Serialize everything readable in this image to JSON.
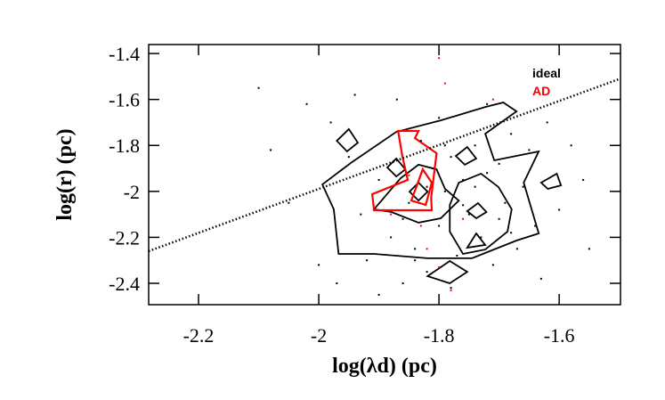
{
  "chart_data": {
    "type": "scatter",
    "x_label": "log(λd) (pc)",
    "y_label": "log(r) (pc)",
    "xlim": [
      -2.283,
      -1.498
    ],
    "ylim": [
      -2.493,
      -1.361
    ],
    "xticks": [
      -2.2,
      -2.0,
      -1.8,
      -1.6
    ],
    "yticks": [
      -2.4,
      -2.2,
      -2.0,
      -1.8,
      -1.6,
      -1.4
    ],
    "series": [
      {
        "name": "ideal",
        "color": "#000000",
        "mode": "dotted-line",
        "x": [
          -2.283,
          -1.498
        ],
        "y": [
          -2.26,
          -1.509
        ]
      },
      {
        "color": "#000000",
        "mode": "markers",
        "x": [
          -2.1,
          -2.02,
          -1.98,
          -1.95,
          -1.93,
          -1.92,
          -1.9,
          -1.88,
          -1.87,
          -1.86,
          -1.85,
          -1.84,
          -1.83,
          -1.82,
          -1.81,
          -1.8,
          -1.79,
          -1.78,
          -1.77,
          -1.76,
          -1.75,
          -1.74,
          -1.73,
          -1.72,
          -1.71,
          -1.7,
          -1.69,
          -1.68,
          -1.67,
          -1.66,
          -1.65,
          -1.64,
          -1.62,
          -1.6,
          -1.58,
          -1.56,
          -1.55,
          -1.9,
          -1.97,
          -2.05,
          -2.0,
          -1.78,
          -1.72,
          -1.8,
          -1.94,
          -2.08,
          -1.63,
          -1.86,
          -1.82,
          -1.76,
          -1.7,
          -1.84,
          -1.79,
          -1.74,
          -1.68
        ],
        "y": [
          -1.55,
          -1.62,
          -1.7,
          -1.85,
          -2.1,
          -2.3,
          -1.95,
          -2.2,
          -1.6,
          -2.4,
          -2.05,
          -2.25,
          -1.78,
          -2.35,
          -1.9,
          -2.15,
          -2.0,
          -1.85,
          -2.28,
          -1.95,
          -2.1,
          -1.8,
          -2.2,
          -1.92,
          -2.32,
          -1.88,
          -2.05,
          -1.75,
          -2.25,
          -1.98,
          -1.82,
          -2.15,
          -1.7,
          -2.08,
          -1.8,
          -1.95,
          -2.25,
          -2.45,
          -2.4,
          -2.05,
          -2.32,
          -2.42,
          -1.62,
          -1.68,
          -1.58,
          -1.82,
          -2.38,
          -2.12,
          -1.98,
          -2.06,
          -2.12,
          -2.3,
          -1.8,
          -1.98,
          -2.18
        ]
      },
      {
        "name": "AD",
        "color": "#ff0000",
        "mode": "markers",
        "x": [
          -1.8,
          -1.79,
          -1.71,
          -1.88,
          -1.82,
          -1.8,
          -1.78,
          -1.85,
          -1.76,
          -1.83
        ],
        "y": [
          -1.42,
          -1.53,
          -1.6,
          -2.1,
          -2.25,
          -2.33,
          -2.43,
          -1.93,
          -2.12,
          -2.15
        ]
      }
    ],
    "contours": [
      {
        "color": "#000000",
        "x": [
          -1.994,
          -1.945,
          -1.871,
          -1.797,
          -1.723,
          -1.693,
          -1.671,
          -1.723,
          -1.708,
          -1.634,
          -1.659,
          -1.634,
          -1.671,
          -1.745,
          -1.819,
          -1.908,
          -1.967,
          -1.975
        ],
        "y": [
          -1.97,
          -1.873,
          -1.741,
          -1.691,
          -1.633,
          -1.613,
          -1.652,
          -1.749,
          -1.865,
          -1.826,
          -1.962,
          -2.183,
          -2.214,
          -2.291,
          -2.291,
          -2.272,
          -2.272,
          -2.078
        ]
      },
      {
        "color": "#000000",
        "x": [
          -1.97,
          -1.95,
          -1.935,
          -1.953
        ],
        "y": [
          -1.78,
          -1.729,
          -1.788,
          -1.826
        ]
      },
      {
        "color": "#000000",
        "x": [
          -1.886,
          -1.871,
          -1.856,
          -1.871
        ],
        "y": [
          -1.896,
          -1.857,
          -1.904,
          -1.935
        ]
      },
      {
        "color": "#000000",
        "x": [
          -1.772,
          -1.753,
          -1.738,
          -1.757
        ],
        "y": [
          -1.846,
          -1.807,
          -1.857,
          -1.884
        ]
      },
      {
        "color": "#000000",
        "x": [
          -1.63,
          -1.604,
          -1.597,
          -1.619
        ],
        "y": [
          -1.962,
          -1.923,
          -1.974,
          -1.989
        ]
      },
      {
        "color": "#000000",
        "x": [
          -1.908,
          -1.864,
          -1.834,
          -1.804,
          -1.79,
          -1.767,
          -1.797,
          -1.834,
          -1.879
        ],
        "y": [
          -2.078,
          -1.943,
          -1.884,
          -1.904,
          -1.989,
          -2.04,
          -2.117,
          -2.136,
          -2.09
        ]
      },
      {
        "color": "#000000",
        "x": [
          -1.782,
          -1.767,
          -1.73,
          -1.701,
          -1.679,
          -1.686,
          -1.723,
          -1.76,
          -1.782
        ],
        "y": [
          -2.059,
          -1.962,
          -1.923,
          -1.981,
          -2.078,
          -2.175,
          -2.253,
          -2.272,
          -2.175
        ]
      },
      {
        "color": "#000000",
        "x": [
          -1.753,
          -1.735,
          -1.721,
          -1.738
        ],
        "y": [
          -2.086,
          -2.051,
          -2.09,
          -2.117
        ]
      },
      {
        "color": "#000000",
        "x": [
          -1.753,
          -1.738,
          -1.723
        ],
        "y": [
          -2.245,
          -2.183,
          -2.233
        ]
      },
      {
        "color": "#000000",
        "x": [
          -1.849,
          -1.834,
          -1.819,
          -1.834
        ],
        "y": [
          -2.001,
          -1.962,
          -2.001,
          -2.04
        ]
      },
      {
        "color": "#000000",
        "x": [
          -1.819,
          -1.782,
          -1.753,
          -1.782
        ],
        "y": [
          -2.369,
          -2.303,
          -2.35,
          -2.4
        ]
      },
      {
        "color": "#ff0000",
        "x": [
          -1.868,
          -1.834,
          -1.84,
          -1.804,
          -1.813,
          -1.812,
          -1.908,
          -1.911,
          -1.852,
          -1.861
        ],
        "y": [
          -1.737,
          -1.737,
          -1.768,
          -1.834,
          -2.028,
          -2.082,
          -2.082,
          -2.012,
          -1.95,
          -1.846
        ]
      },
      {
        "color": "#ff0000",
        "x": [
          -1.846,
          -1.827,
          -1.812,
          -1.822
        ],
        "y": [
          -2.04,
          -1.904,
          -1.962,
          -2.059
        ]
      }
    ]
  }
}
